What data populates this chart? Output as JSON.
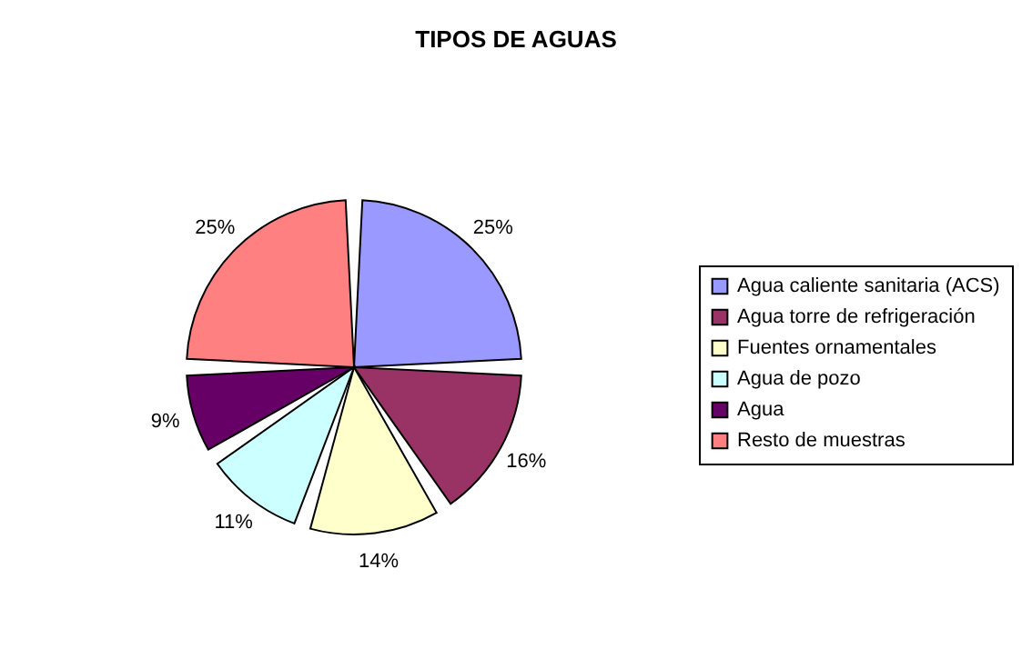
{
  "chart_data": {
    "type": "pie",
    "title": "TIPOS DE AGUAS",
    "categories": [
      "Agua caliente sanitaria (ACS)",
      "Agua torre de refrigeración",
      "Fuentes ornamentales",
      "Agua de pozo",
      "Agua",
      "Resto de muestras"
    ],
    "values": [
      25,
      16,
      14,
      11,
      9,
      25
    ],
    "colors": [
      "#9999ff",
      "#993366",
      "#ffffcc",
      "#ccffff",
      "#660066",
      "#ff8080"
    ],
    "value_labels": [
      "25%",
      "16%",
      "14%",
      "11%",
      "9%",
      "25%"
    ],
    "legend": "right"
  }
}
